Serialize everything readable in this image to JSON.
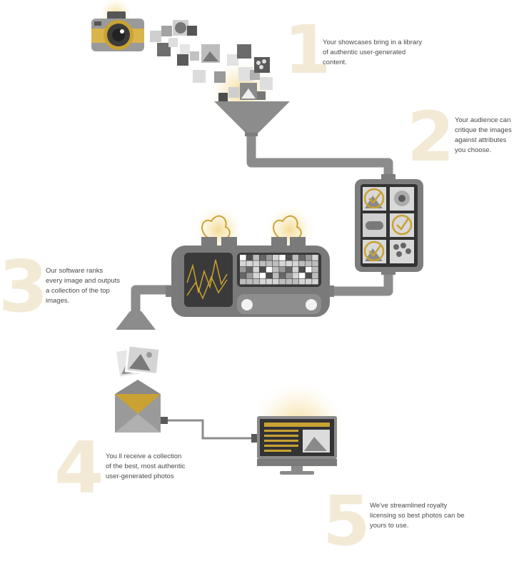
{
  "colors": {
    "gold": "#c9a233",
    "pipe": "#8c8c8c",
    "pipe_light": "#a3a3a3",
    "machine": "#7a7a7a",
    "screen": "#3a3a3a",
    "number": "#f3ead6",
    "text": "#4a4a4a"
  },
  "icons": {
    "camera": "camera-icon",
    "funnel": "funnel-icon",
    "tablet": "tablet-icon",
    "ranking_machine": "ranking-machine-icon",
    "envelope": "envelope-icon",
    "photos": "photo-stack-icon",
    "monitor": "monitor-icon"
  },
  "steps": [
    {
      "number": "1",
      "lines": [
        "Your showcases bring in a library",
        "of authentic user-generated",
        "content."
      ]
    },
    {
      "number": "2",
      "lines": [
        "Your audience can",
        "critique the images",
        "against attributes",
        "you choose."
      ]
    },
    {
      "number": "3",
      "lines": [
        "Our software ranks",
        "every image and outputs",
        "a collection of the top",
        "images."
      ]
    },
    {
      "number": "4",
      "lines": [
        "You ll receive a collection",
        "of the best, most authentic",
        "user-generated photos"
      ]
    },
    {
      "number": "5",
      "lines": [
        "We've streamlined royalty",
        "licensing so best photos can be",
        "yours to use."
      ]
    }
  ]
}
